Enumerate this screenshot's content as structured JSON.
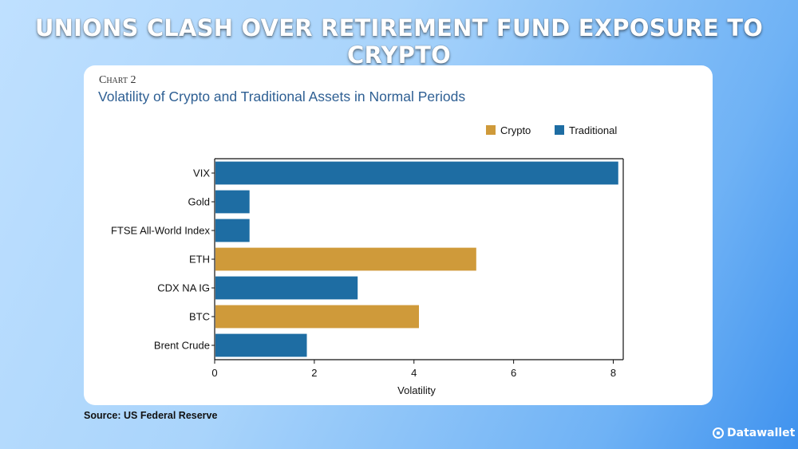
{
  "headline": "UNIONS CLASH OVER RETIREMENT FUND EXPOSURE TO CRYPTO",
  "card": {
    "chart_number": "Chart 2",
    "title": "Volatility of Crypto and Traditional Assets in Normal Periods"
  },
  "source": "Source: US Federal Reserve",
  "brand": {
    "name": "Datawallet",
    "icon": "datawallet-logo-icon"
  },
  "colors": {
    "Crypto": "#cf9a3a",
    "Traditional": "#1e6da3",
    "title": "#2e5f93"
  },
  "chart_data": {
    "type": "bar",
    "orientation": "horizontal",
    "title": "Volatility of Crypto and Traditional Assets in Normal Periods",
    "xlabel": "Volatility",
    "ylabel": "",
    "xlim": [
      0,
      8.2
    ],
    "xticks": [
      "0",
      "2",
      "4",
      "6",
      "8"
    ],
    "grid": false,
    "legend_position": "top-right",
    "legend": [
      "Crypto",
      "Traditional"
    ],
    "categories": [
      "VIX",
      "Gold",
      "FTSE All-World Index",
      "ETH",
      "CDX NA IG",
      "BTC",
      "Brent Crude"
    ],
    "values": [
      8.1,
      0.7,
      0.7,
      5.25,
      2.87,
      4.1,
      1.85
    ],
    "groups": [
      "Traditional",
      "Traditional",
      "Traditional",
      "Crypto",
      "Traditional",
      "Crypto",
      "Traditional"
    ]
  }
}
